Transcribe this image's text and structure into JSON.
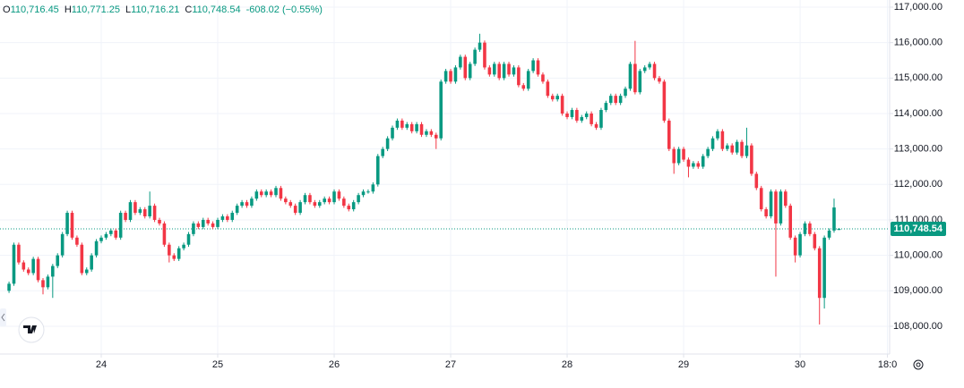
{
  "header": {
    "items": [
      {
        "label": "O",
        "value": "110,716.45"
      },
      {
        "label": "H",
        "value": "110,771.25"
      },
      {
        "label": "L",
        "value": "110,716.21"
      },
      {
        "label": "C",
        "value": "110,748.54"
      }
    ],
    "change": "-608.02 (−0.55%)"
  },
  "chart_data": {
    "type": "candlestick",
    "up_color": "#089981",
    "down_color": "#f23645",
    "grid": true,
    "xlim": [
      -1.86,
      181.45
    ],
    "xticks": [
      {
        "value": 19,
        "label": "24"
      },
      {
        "value": 43,
        "label": "25"
      },
      {
        "value": 67,
        "label": "26"
      },
      {
        "value": 91,
        "label": "27"
      },
      {
        "value": 115,
        "label": "28"
      },
      {
        "value": 139,
        "label": "29"
      },
      {
        "value": 163,
        "label": "30"
      },
      {
        "value": 181,
        "label": "18:0"
      }
    ],
    "ylim": [
      107217,
      117202
    ],
    "yticks": [
      {
        "value": 108000,
        "label": "108,000.00"
      },
      {
        "value": 109000,
        "label": "109,000.00"
      },
      {
        "value": 110000,
        "label": "110,000.00"
      },
      {
        "value": 111000,
        "label": "111,000.00"
      },
      {
        "value": 112000,
        "label": "112,000.00"
      },
      {
        "value": 113000,
        "label": "113,000.00"
      },
      {
        "value": 114000,
        "label": "114,000.00"
      },
      {
        "value": 115000,
        "label": "115,000.00"
      },
      {
        "value": 116000,
        "label": "116,000.00"
      },
      {
        "value": 117000,
        "label": "117,000.00"
      }
    ],
    "last_price": {
      "value": 110748.54,
      "label": "110,748.54"
    },
    "open": [
      109000,
      109200,
      110300,
      109800,
      109600,
      109500,
      109900,
      109300,
      109100,
      109400,
      109700,
      110000,
      110600,
      111200,
      110500,
      110300,
      109500,
      109600,
      110000,
      110400,
      110500,
      110600,
      110700,
      110500,
      111200,
      111000,
      111500,
      111200,
      111300,
      111100,
      111400,
      111000,
      110900,
      110300,
      110000,
      109900,
      110200,
      110300,
      110600,
      110900,
      110800,
      111000,
      110900,
      110800,
      111000,
      111100,
      111000,
      111200,
      111400,
      111500,
      111400,
      111600,
      111800,
      111700,
      111800,
      111700,
      111900,
      111600,
      111500,
      111400,
      111200,
      111500,
      111700,
      111500,
      111400,
      111500,
      111600,
      111500,
      111800,
      111600,
      111400,
      111300,
      111500,
      111700,
      111800,
      111800,
      112000,
      112800,
      113000,
      113300,
      113600,
      113800,
      113600,
      113700,
      113500,
      113700,
      113400,
      113500,
      113400,
      113300,
      114900,
      115200,
      114900,
      115300,
      115600,
      115000,
      115400,
      115800,
      116000,
      115300,
      115100,
      115400,
      115000,
      115400,
      115100,
      115300,
      114800,
      114700,
      115200,
      115500,
      115100,
      114900,
      114500,
      114400,
      114500,
      114000,
      113900,
      114100,
      113800,
      113900,
      114000,
      113700,
      113600,
      114100,
      114300,
      114500,
      114300,
      114500,
      114700,
      115400,
      114600,
      115200,
      115300,
      115400,
      115000,
      114900,
      113800,
      113000,
      112600,
      113000,
      112700,
      112500,
      112600,
      112500,
      112800,
      113000,
      113300,
      113500,
      113000,
      113100,
      112900,
      113200,
      112800,
      113100,
      112300,
      111900,
      111300,
      111100,
      111800,
      110900,
      111800,
      111400,
      110500,
      110000,
      110600,
      110900,
      110600,
      110200,
      108800,
      110500,
      110700,
      110716.45
    ],
    "high": [
      109260,
      110360,
      110360,
      109860,
      109660,
      109960,
      109960,
      109360,
      109460,
      109760,
      110060,
      110660,
      111260,
      111260,
      110560,
      110360,
      109660,
      110060,
      110460,
      110560,
      110660,
      110760,
      110760,
      111260,
      111260,
      111560,
      111560,
      111360,
      111360,
      111800,
      111460,
      111060,
      110960,
      110360,
      110060,
      110260,
      110360,
      110660,
      110960,
      110960,
      111060,
      111060,
      110960,
      111060,
      111160,
      111160,
      111260,
      111460,
      111560,
      111560,
      111660,
      111860,
      111860,
      111860,
      111860,
      111960,
      111960,
      111660,
      111560,
      111460,
      111560,
      111760,
      111760,
      111560,
      111560,
      111660,
      111660,
      111860,
      111860,
      111660,
      111460,
      111560,
      111760,
      111860,
      111860,
      112060,
      112860,
      113060,
      113360,
      113660,
      113860,
      113860,
      113760,
      113760,
      113760,
      113760,
      113560,
      113560,
      113460,
      114960,
      115260,
      115260,
      115360,
      115660,
      115660,
      115460,
      115860,
      116250,
      116060,
      115360,
      115460,
      115460,
      115460,
      115460,
      115360,
      115360,
      114860,
      115260,
      115560,
      115560,
      115160,
      114960,
      114560,
      114560,
      114560,
      114060,
      114160,
      114160,
      113960,
      114060,
      114060,
      113760,
      114160,
      114360,
      114560,
      114560,
      114560,
      114760,
      115460,
      116050,
      115260,
      115360,
      115460,
      115460,
      115060,
      114960,
      113860,
      113060,
      113060,
      113060,
      112760,
      112660,
      112660,
      112860,
      113060,
      113360,
      113560,
      113560,
      113160,
      113160,
      113260,
      113260,
      113600,
      113160,
      112360,
      111960,
      111360,
      111860,
      111860,
      111860,
      111860,
      111460,
      110560,
      110660,
      110960,
      110960,
      110660,
      110260,
      110560,
      110760,
      111600,
      110771.25
    ],
    "low": [
      108940,
      109140,
      109740,
      109540,
      109440,
      109440,
      109240,
      108900,
      109040,
      108800,
      109640,
      109940,
      110540,
      110440,
      110240,
      109440,
      109440,
      109540,
      109940,
      110340,
      110440,
      110540,
      110440,
      110440,
      110940,
      110940,
      111140,
      111140,
      111040,
      111040,
      110940,
      110840,
      110240,
      109800,
      109840,
      109840,
      110140,
      110240,
      110540,
      110740,
      110740,
      110840,
      110740,
      110740,
      110940,
      110940,
      110940,
      111140,
      111340,
      111340,
      111340,
      111540,
      111640,
      111640,
      111640,
      111640,
      111540,
      111440,
      111340,
      111140,
      111140,
      111440,
      111440,
      111340,
      111340,
      111440,
      111440,
      111440,
      111540,
      111340,
      111240,
      111240,
      111440,
      111640,
      111740,
      111740,
      111940,
      112740,
      112940,
      113240,
      113540,
      113540,
      113540,
      113440,
      113440,
      113340,
      113340,
      113340,
      113000,
      113240,
      114840,
      114840,
      114840,
      115240,
      114940,
      114940,
      115340,
      115740,
      115240,
      115040,
      115040,
      114940,
      114940,
      115040,
      115040,
      114740,
      114640,
      114640,
      115140,
      115040,
      114840,
      114440,
      114340,
      114340,
      113940,
      113840,
      113840,
      113740,
      113740,
      113840,
      113640,
      113540,
      113540,
      114040,
      114240,
      114240,
      114240,
      114440,
      114640,
      114540,
      114540,
      115140,
      115240,
      114940,
      114840,
      113740,
      112940,
      112300,
      112540,
      112640,
      112200,
      112440,
      112440,
      112440,
      112740,
      112940,
      113240,
      112940,
      112940,
      112840,
      112840,
      112740,
      112740,
      112240,
      111840,
      111240,
      111040,
      111040,
      109400,
      110840,
      111340,
      110440,
      109800,
      109940,
      110540,
      110540,
      110140,
      108050,
      108500,
      110440,
      110640,
      110716.21
    ],
    "close": [
      109200,
      110300,
      109800,
      109600,
      109500,
      109900,
      109300,
      109100,
      109400,
      109700,
      110000,
      110600,
      111200,
      110500,
      110300,
      109500,
      109600,
      110000,
      110400,
      110500,
      110600,
      110700,
      110500,
      111200,
      111000,
      111500,
      111200,
      111300,
      111100,
      111400,
      111000,
      110900,
      110300,
      110000,
      109900,
      110200,
      110300,
      110600,
      110900,
      110800,
      111000,
      110900,
      110800,
      111000,
      111100,
      111000,
      111200,
      111400,
      111500,
      111400,
      111600,
      111800,
      111700,
      111800,
      111700,
      111900,
      111600,
      111500,
      111400,
      111200,
      111500,
      111700,
      111500,
      111400,
      111500,
      111600,
      111500,
      111800,
      111600,
      111400,
      111300,
      111500,
      111700,
      111800,
      111800,
      112000,
      112800,
      113000,
      113300,
      113600,
      113800,
      113600,
      113700,
      113500,
      113700,
      113400,
      113500,
      113400,
      113300,
      114900,
      115200,
      114900,
      115300,
      115600,
      115000,
      115400,
      115800,
      116000,
      115300,
      115100,
      115400,
      115000,
      115400,
      115100,
      115300,
      114800,
      114700,
      115200,
      115500,
      115100,
      114900,
      114500,
      114400,
      114500,
      114000,
      113900,
      114100,
      113800,
      113900,
      114000,
      113700,
      113600,
      114100,
      114300,
      114500,
      114300,
      114500,
      114700,
      115400,
      114600,
      115200,
      115300,
      115400,
      115000,
      114900,
      113800,
      113000,
      112600,
      113000,
      112700,
      112500,
      112600,
      112500,
      112800,
      113000,
      113300,
      113500,
      113000,
      113100,
      112900,
      113200,
      112800,
      113100,
      112300,
      111900,
      111300,
      111100,
      111800,
      110900,
      111800,
      111400,
      110500,
      110000,
      110600,
      110900,
      110600,
      110200,
      108800,
      110500,
      110700,
      111350,
      110748.54
    ]
  }
}
